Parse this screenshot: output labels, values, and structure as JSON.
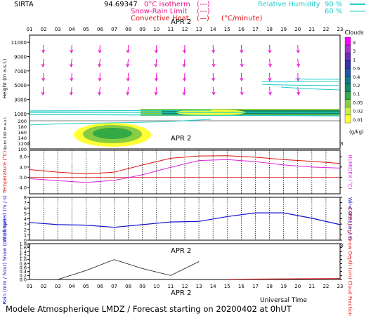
{
  "header": {
    "station": "SIRTA",
    "number": "94.69347",
    "legend": [
      {
        "label": "0°C isotherm",
        "symbol": "(---)",
        "color": "#ee1188"
      },
      {
        "label": "Snow-Rain Limit",
        "symbol": "(---)",
        "color": "#ee1188"
      },
      {
        "label": "Convective Heat.",
        "symbol": "(—)",
        "unit": "(°C/minute)",
        "color": "#dd1111"
      }
    ],
    "rh_label": "Relative Humidity",
    "rh_90": "90 %",
    "rh_60": "60 %"
  },
  "date_label": "APR  2",
  "hours": [
    "01",
    "02",
    "03",
    "04",
    "05",
    "06",
    "07",
    "08",
    "09",
    "10",
    "11",
    "12",
    "13",
    "14",
    "15",
    "16",
    "17",
    "18",
    "19",
    "20",
    "21",
    "22",
    "23"
  ],
  "footer": {
    "universal_time": "Universal Time",
    "caption": "Modele Atmospherique LMDZ / Forecast starting on 20200402 at 0hUT"
  },
  "colors": {
    "temperature": "#dd1111",
    "humidex": "#dd22dd",
    "wind": "#1111cc",
    "rain": "#111111",
    "cape": "#dd1111",
    "rh": "#22cccc",
    "cloud_scale": [
      "#ffffff",
      "#ffff33",
      "#ccee44",
      "#88cc44",
      "#33aa44",
      "#118866",
      "#117788",
      "#2255aa",
      "#3333aa",
      "#6633bb",
      "#aa33cc",
      "#ff00ff"
    ]
  },
  "chart_data": [
    {
      "type": "heatmap",
      "name_in_image": "Clouds",
      "legend_title": "Clouds",
      "unit": "(g/kg)",
      "ylabel_upper": "Height (m a.s.l.)",
      "ylabel_lower": "Up to 300 m a.s.l.",
      "upper_ticks": [
        1000,
        3000,
        5000,
        7000,
        9000,
        11000
      ],
      "lower_ticks": [
        100,
        120,
        140,
        160,
        180,
        200
      ],
      "scale_ticks": [
        "9",
        "3",
        "1",
        "0.6",
        "0.4",
        "0.2",
        "0.1",
        "0.05",
        "0.02",
        "0.01"
      ],
      "wind_arrows": "shown at hours 02-21"
    },
    {
      "type": "line",
      "ylabel": "Temperature (°C)",
      "ylabel_right": "HUMIDEX (°C)",
      "yticks": [
        -4.0,
        0.0,
        4.0,
        8.0
      ],
      "ylim": [
        -6.4,
        10.5
      ],
      "x": [
        1,
        3,
        5,
        7,
        9,
        11,
        13,
        15,
        17,
        19,
        21,
        23
      ],
      "series": [
        {
          "name": "Temperature",
          "values": [
            3.0,
            2.0,
            1.3,
            2.0,
            4.8,
            7.4,
            8.3,
            8.4,
            7.8,
            6.9,
            6.2,
            5.4
          ]
        },
        {
          "name": "HUMIDEX",
          "values": [
            -0.5,
            -1.3,
            -2.0,
            -1.2,
            1.0,
            3.9,
            6.5,
            6.9,
            6.1,
            4.8,
            4.0,
            3.6
          ]
        }
      ]
    },
    {
      "type": "line",
      "ylabel": "Wind Speed (m / s)",
      "ylabel_right": "Wind Gust (m / s)",
      "yticks": [
        0,
        1,
        2,
        3,
        4,
        5,
        6,
        7,
        8
      ],
      "ylim": [
        0,
        8
      ],
      "x": [
        1,
        3,
        5,
        7,
        9,
        11,
        13,
        15,
        17,
        19,
        21,
        23
      ],
      "series": [
        {
          "name": "Wind Speed",
          "values": [
            3.3,
            2.9,
            2.8,
            2.4,
            2.9,
            3.4,
            3.5,
            4.4,
            5.1,
            5.1,
            4.1,
            2.9
          ]
        }
      ]
    },
    {
      "type": "line",
      "ylabel": "Rain (mm / hour) Snow (cm / hour)",
      "ylabel_right": "CAPE (J / g) Snow Depth (cm) Cloud Fraction",
      "yticks": [
        0.0,
        0.2,
        0.4,
        0.6,
        0.8,
        1.0,
        1.2,
        1.4,
        1.6,
        1.8
      ],
      "ylim": [
        0,
        1.8
      ],
      "x": [
        1,
        3,
        5,
        7,
        9,
        11,
        13,
        15,
        17,
        19,
        21,
        23
      ],
      "series": [
        {
          "name": "Rain",
          "values": [
            0.0,
            0.0,
            0.45,
            1.0,
            0.55,
            0.2,
            0.9,
            null,
            null,
            null,
            null,
            null
          ]
        },
        {
          "name": "CAPE",
          "values": [
            null,
            null,
            null,
            null,
            null,
            null,
            null,
            0.01,
            0.02,
            0.03,
            0.04,
            0.05
          ]
        }
      ]
    }
  ]
}
